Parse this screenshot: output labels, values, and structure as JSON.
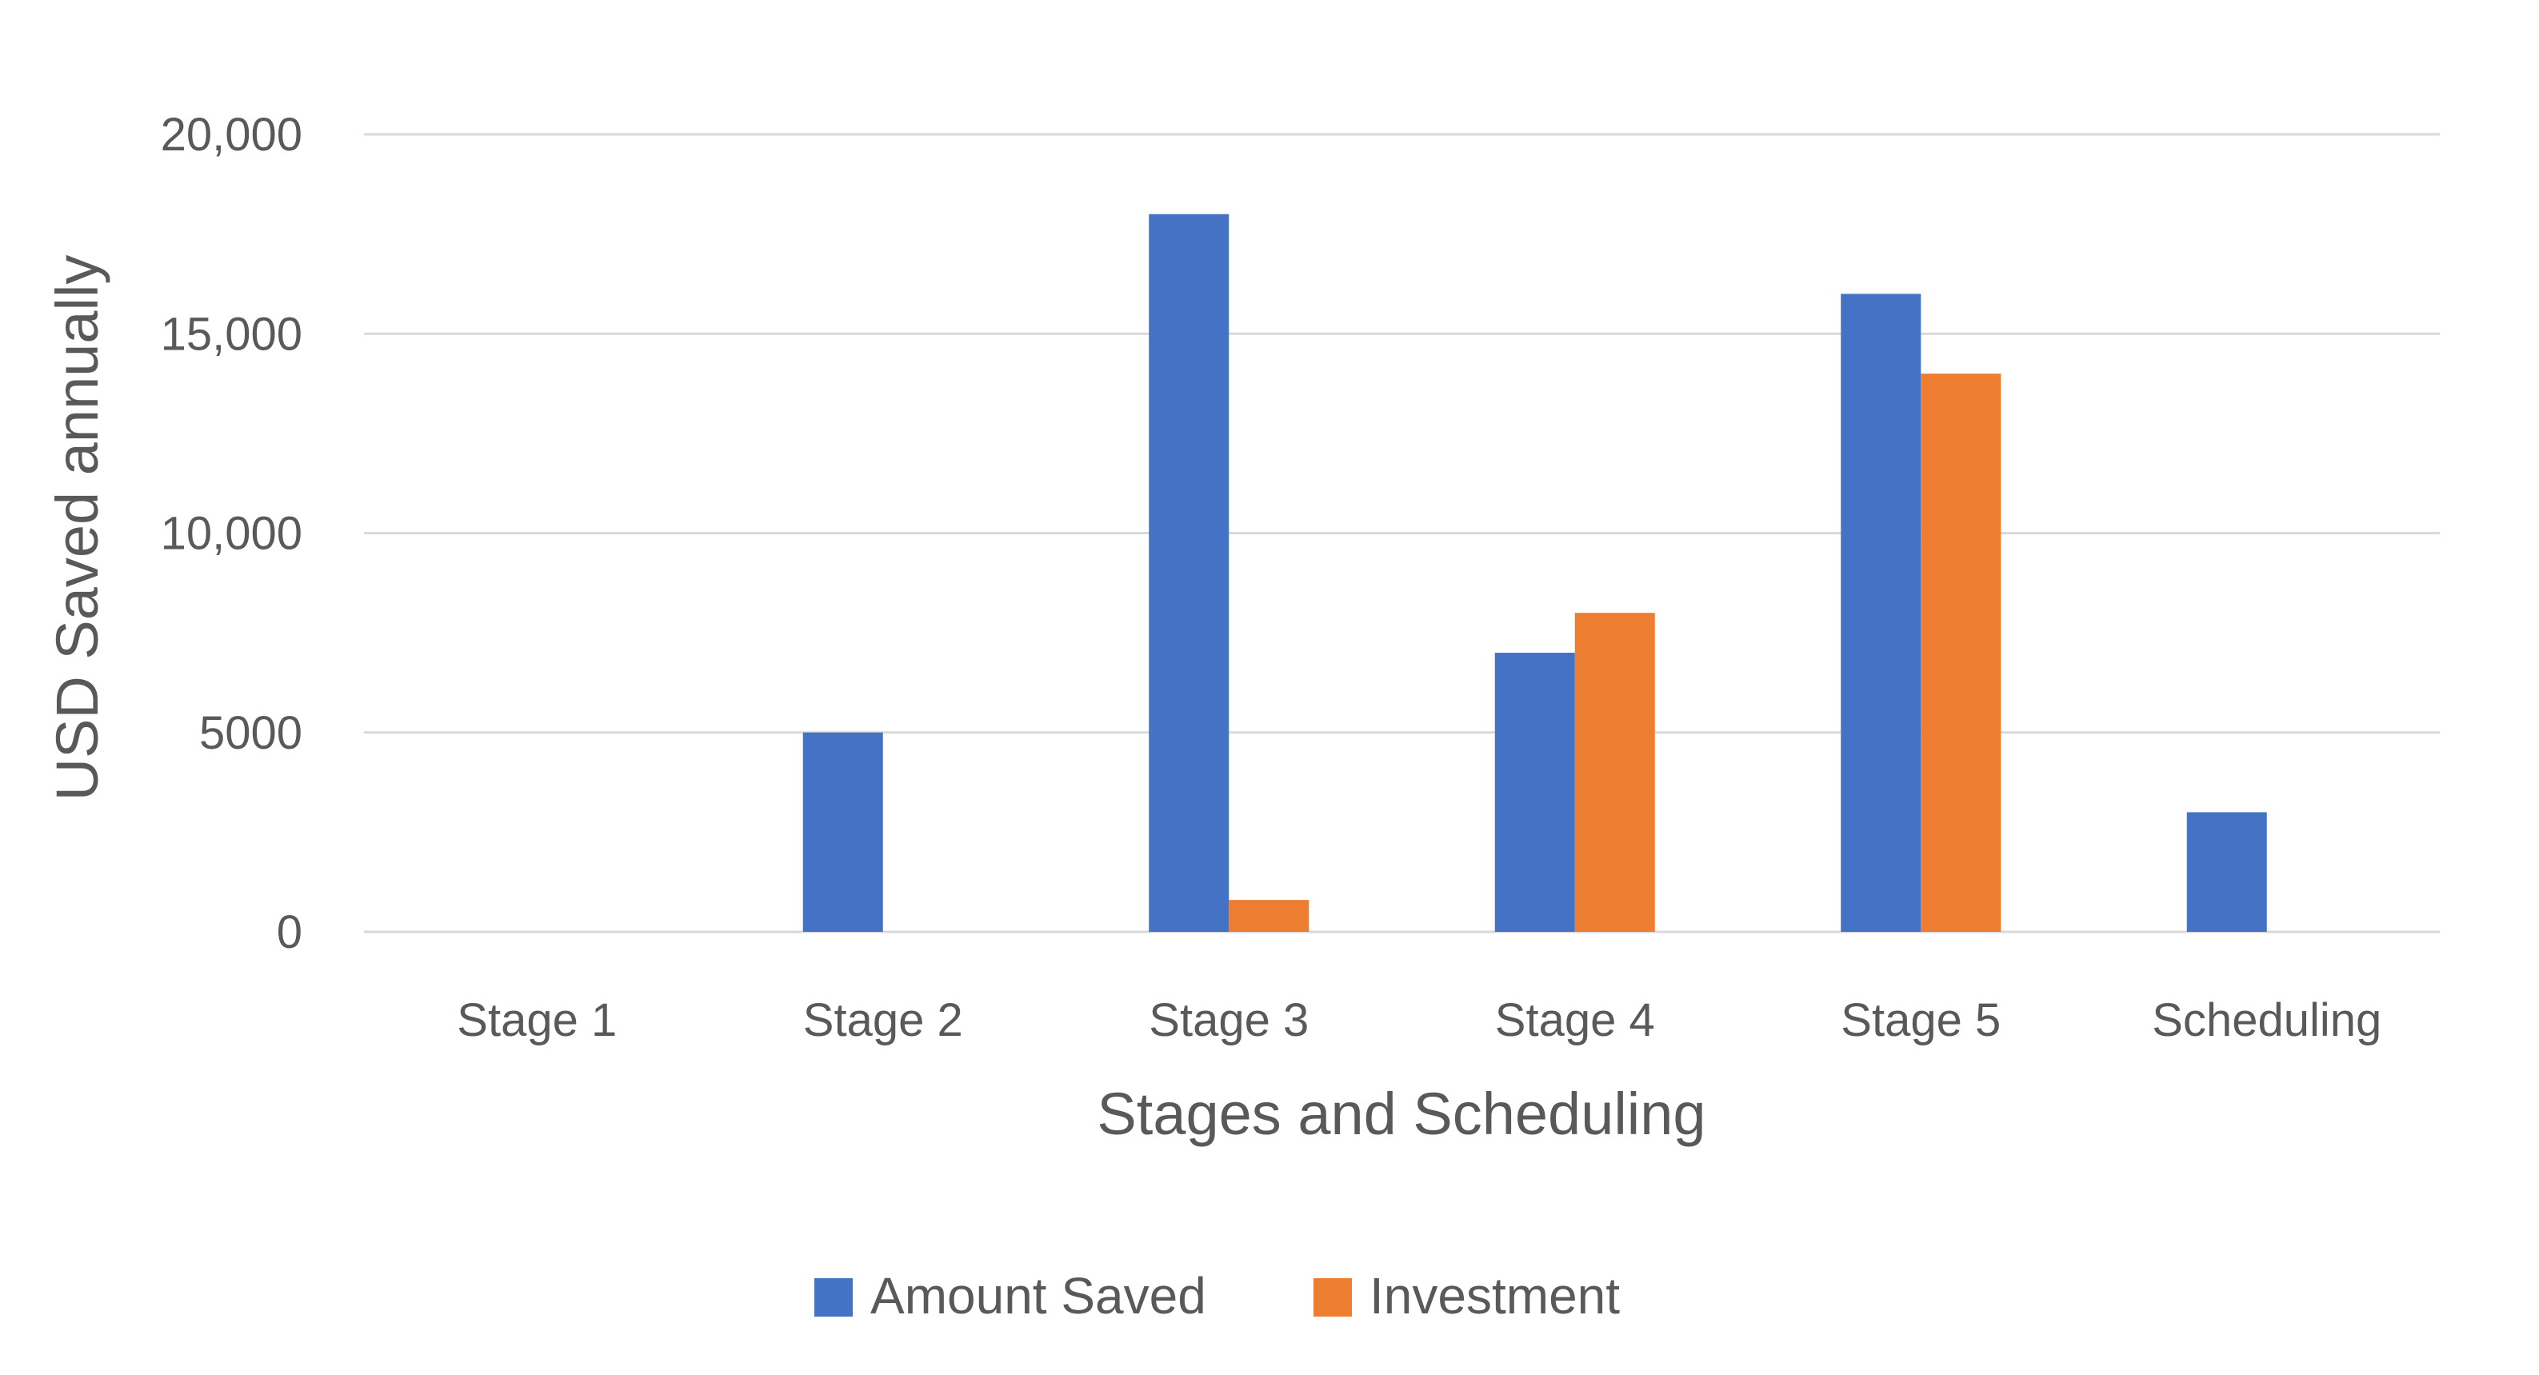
{
  "chart_data": {
    "type": "bar",
    "title": "",
    "xlabel": "Stages and Scheduling",
    "ylabel": "USD Saved annually",
    "categories": [
      "Stage 1",
      "Stage 2",
      "Stage 3",
      "Stage 4",
      "Stage 5",
      "Scheduling"
    ],
    "series": [
      {
        "name": "Amount Saved",
        "color": "#4472C4",
        "values": [
          0,
          5000,
          18000,
          7000,
          16000,
          3000
        ]
      },
      {
        "name": "Investment",
        "color": "#ED7D31",
        "values": [
          0,
          0,
          800,
          8000,
          14000,
          0
        ]
      }
    ],
    "ylim": [
      0,
      20000
    ],
    "yticks": [
      0,
      5000,
      10000,
      15000,
      20000
    ],
    "ytick_labels": [
      "0",
      "5000",
      "10,000",
      "15,000",
      "20,000"
    ],
    "grid": true,
    "legend": "bottom-center"
  }
}
